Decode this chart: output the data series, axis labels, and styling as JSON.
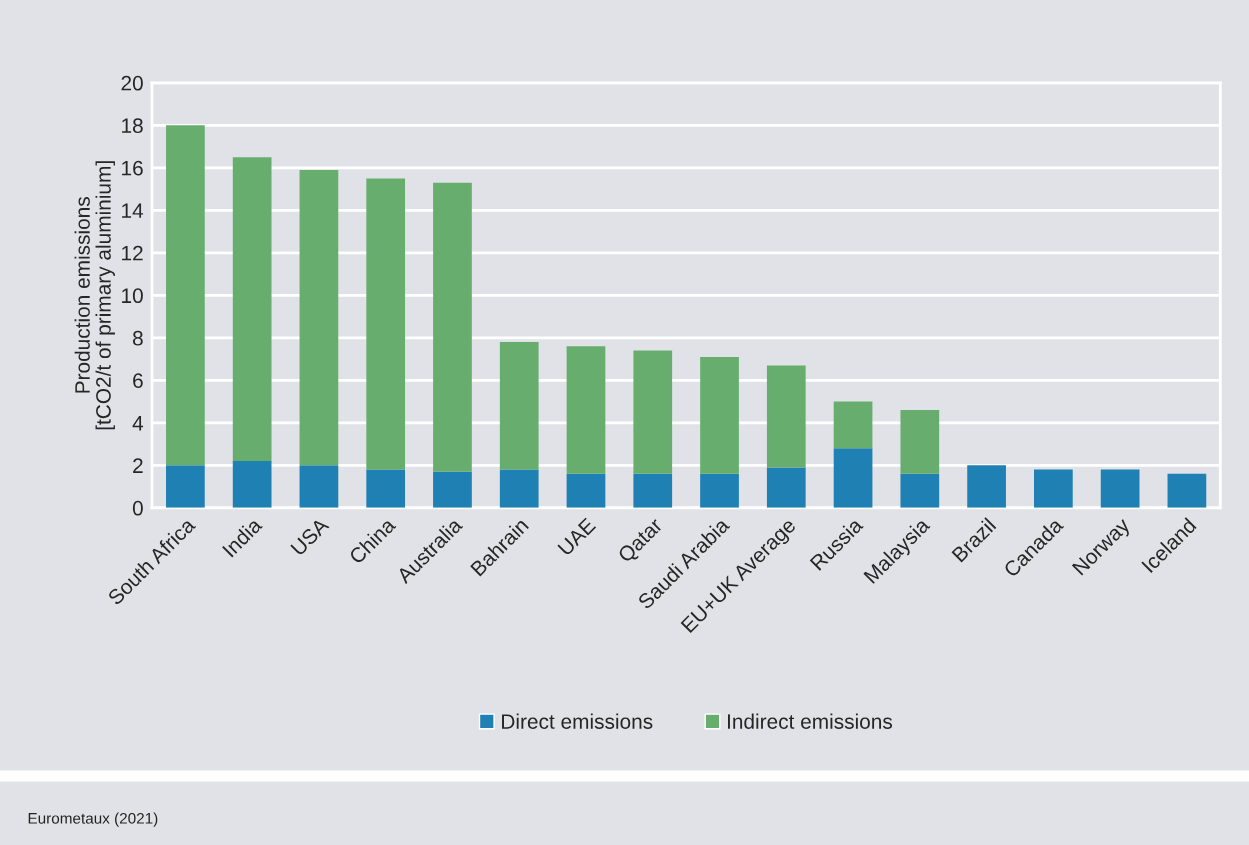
{
  "chart_data": {
    "type": "bar",
    "stacked": true,
    "ylabel": "Production emissions\n[tCO2/t of primary aluminium]",
    "categories": [
      "South Africa",
      "India",
      "USA",
      "China",
      "Australia",
      "Bahrain",
      "UAE",
      "Qatar",
      "Saudi Arabia",
      "EU+UK Average",
      "Russia",
      "Malaysia",
      "Brazil",
      "Canada",
      "Norway",
      "Iceland"
    ],
    "series": [
      {
        "name": "Direct emissions",
        "color": "#1f80b4",
        "values": [
          2.0,
          2.2,
          2.0,
          1.8,
          1.7,
          1.8,
          1.6,
          1.6,
          1.6,
          1.9,
          2.8,
          1.6,
          2.0,
          1.8,
          1.8,
          1.6
        ]
      },
      {
        "name": "Indirect emissions",
        "color": "#67ae6e",
        "values": [
          16.0,
          14.3,
          13.9,
          13.7,
          13.6,
          6.0,
          6.0,
          5.8,
          5.5,
          4.8,
          2.2,
          3.0,
          0,
          0,
          0,
          0
        ]
      }
    ],
    "ylim": [
      0,
      20
    ],
    "yticks": [
      0,
      2,
      4,
      6,
      8,
      10,
      12,
      14,
      16,
      18,
      20
    ],
    "grid": "y",
    "legend": "bottom",
    "annotations": [
      "Eurometaux (2021)"
    ]
  }
}
